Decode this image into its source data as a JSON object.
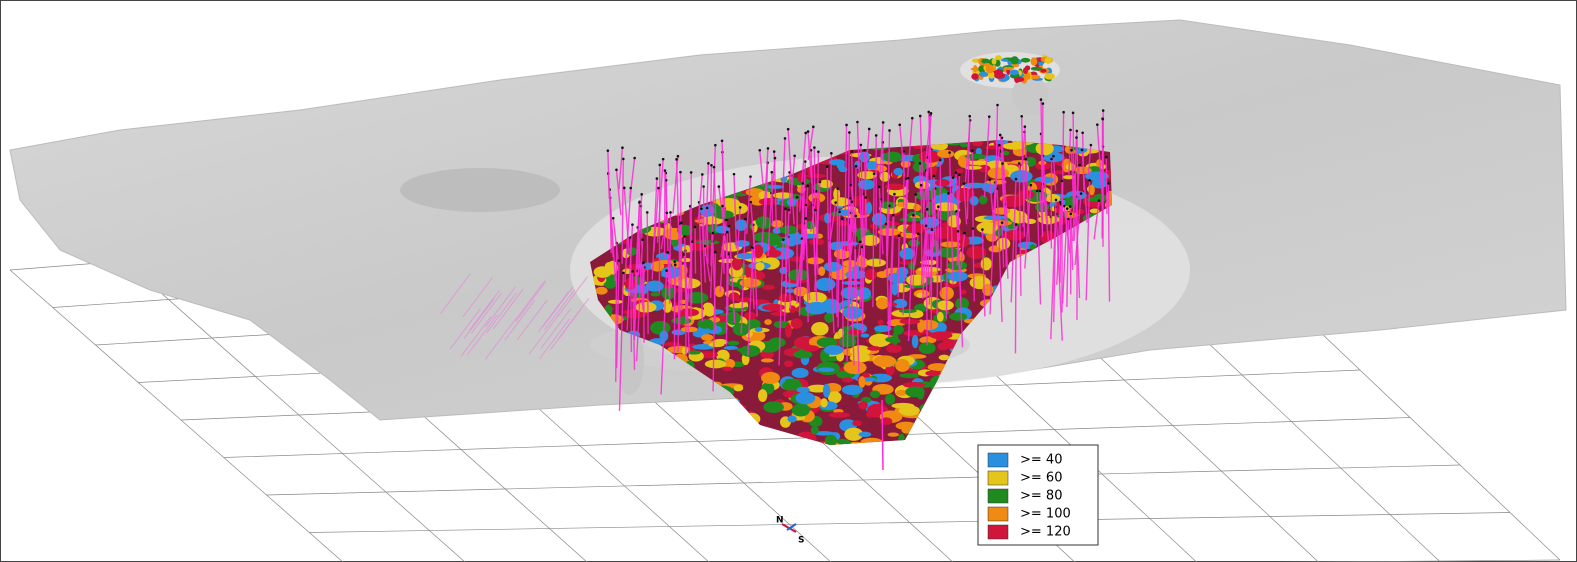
{
  "legend": {
    "items": [
      {
        "label": ">= 40",
        "color": "#2b8fe0"
      },
      {
        "label": ">= 60",
        "color": "#e6c51b"
      },
      {
        "label": ">= 80",
        "color": "#1f8a1f"
      },
      {
        "label": ">= 100",
        "color": "#f08a12"
      },
      {
        "label": ">= 120",
        "color": "#d0143c"
      }
    ]
  },
  "compass": {
    "north": "N",
    "south": "S"
  }
}
